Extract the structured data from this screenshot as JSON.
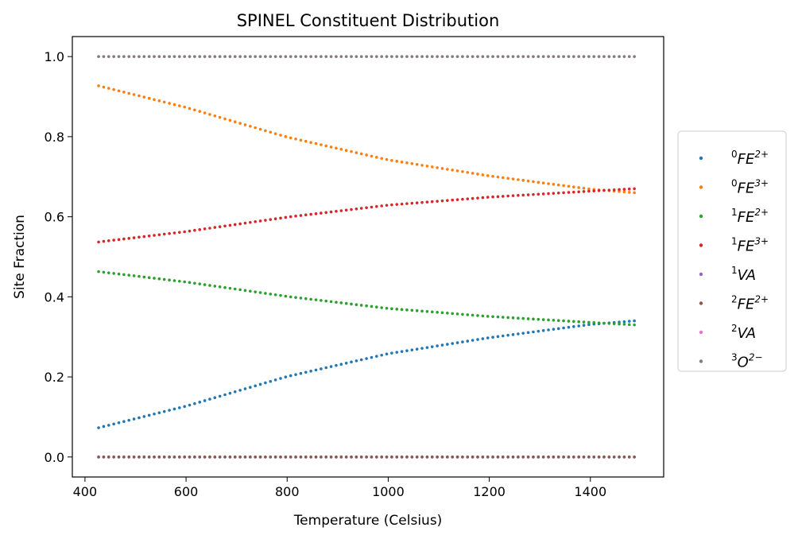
{
  "chart_data": {
    "type": "scatter",
    "title": "SPINEL Constituent Distribution",
    "xlabel": "Temperature (Celsius)",
    "ylabel": "Site Fraction",
    "xlim": [
      375,
      1545
    ],
    "ylim": [
      -0.05,
      1.05
    ],
    "xticks": [
      400,
      600,
      800,
      1000,
      1200,
      1400
    ],
    "yticks": [
      0.0,
      0.2,
      0.4,
      0.6,
      0.8,
      1.0
    ],
    "xtick_labels": [
      "400",
      "600",
      "800",
      "1000",
      "1200",
      "1400"
    ],
    "ytick_labels": [
      "0.0",
      "0.2",
      "0.4",
      "0.6",
      "0.8",
      "1.0"
    ],
    "x_range": [
      427,
      1487
    ],
    "x_step": 10,
    "grid": false,
    "legend_position": "right, outside plot",
    "series": [
      {
        "name": "FE2+",
        "sup_left": "0",
        "base": "FE",
        "sup_right": "2+",
        "color": "#1f77b4",
        "curve": [
          [
            427,
            0.073
          ],
          [
            600,
            0.127
          ],
          [
            800,
            0.201
          ],
          [
            1000,
            0.258
          ],
          [
            1200,
            0.298
          ],
          [
            1400,
            0.331
          ],
          [
            1487,
            0.34
          ]
        ]
      },
      {
        "name": "FE3+",
        "sup_left": "0",
        "base": "FE",
        "sup_right": "3+",
        "color": "#ff7f0e",
        "curve": [
          [
            427,
            0.927
          ],
          [
            600,
            0.873
          ],
          [
            800,
            0.799
          ],
          [
            1000,
            0.742
          ],
          [
            1200,
            0.702
          ],
          [
            1400,
            0.669
          ],
          [
            1487,
            0.66
          ]
        ]
      },
      {
        "name": "FE2+",
        "sup_left": "1",
        "base": "FE",
        "sup_right": "2+",
        "color": "#2ca02c",
        "curve": [
          [
            427,
            0.463
          ],
          [
            600,
            0.437
          ],
          [
            800,
            0.401
          ],
          [
            1000,
            0.371
          ],
          [
            1200,
            0.351
          ],
          [
            1400,
            0.336
          ],
          [
            1487,
            0.33
          ]
        ]
      },
      {
        "name": "FE3+",
        "sup_left": "1",
        "base": "FE",
        "sup_right": "3+",
        "color": "#d62728",
        "curve": [
          [
            427,
            0.537
          ],
          [
            600,
            0.563
          ],
          [
            800,
            0.599
          ],
          [
            1000,
            0.629
          ],
          [
            1200,
            0.649
          ],
          [
            1400,
            0.664
          ],
          [
            1487,
            0.67
          ]
        ]
      },
      {
        "name": "VA",
        "sup_left": "1",
        "base": "VA",
        "sup_right": "",
        "color": "#9467bd",
        "curve": [
          [
            427,
            0.0
          ],
          [
            1487,
            0.0
          ]
        ]
      },
      {
        "name": "FE2+",
        "sup_left": "2",
        "base": "FE",
        "sup_right": "2+",
        "color": "#8c564b",
        "curve": [
          [
            427,
            0.0
          ],
          [
            1487,
            0.0
          ]
        ]
      },
      {
        "name": "VA",
        "sup_left": "2",
        "base": "VA",
        "sup_right": "",
        "color": "#e377c2",
        "curve": [
          [
            427,
            1.0
          ],
          [
            1487,
            1.0
          ]
        ]
      },
      {
        "name": "O2-",
        "sup_left": "3",
        "base": "O",
        "sup_right": "2−",
        "color": "#7f7f7f",
        "curve": [
          [
            427,
            1.0
          ],
          [
            1487,
            1.0
          ]
        ]
      }
    ]
  }
}
